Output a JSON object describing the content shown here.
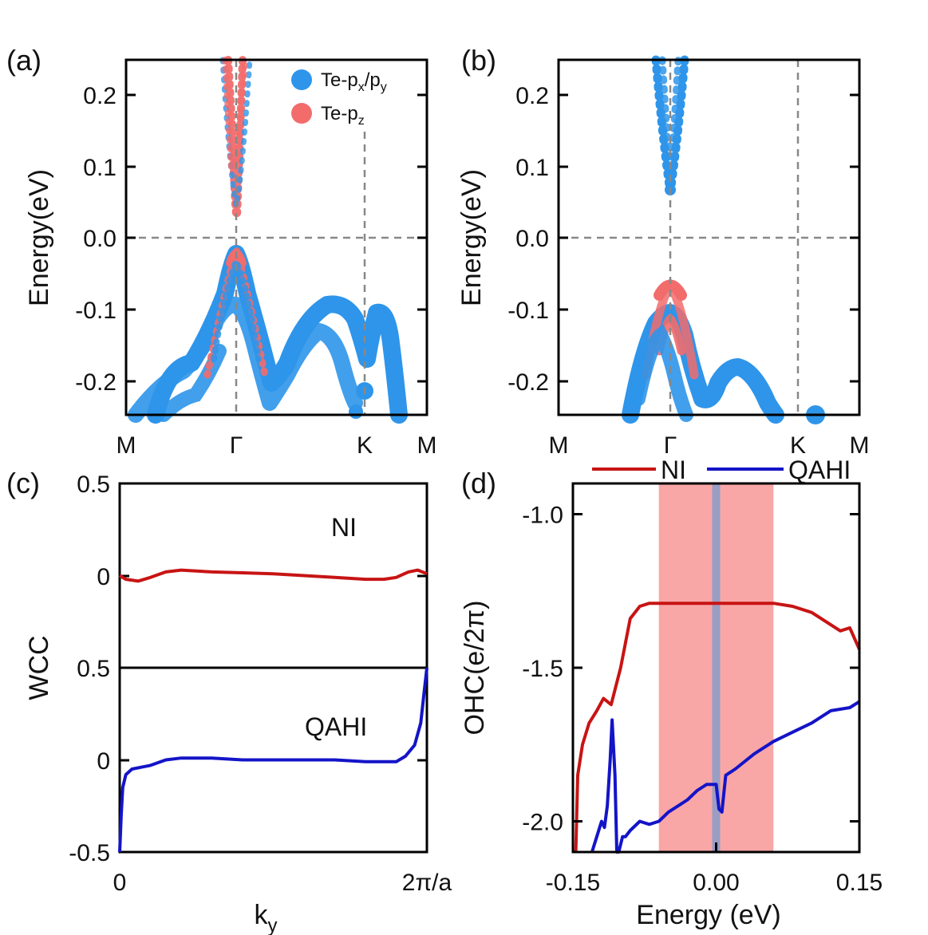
{
  "chart_data": [
    {
      "panel": "(a)",
      "type": "scatter",
      "ylabel": "Energy(eV)",
      "ylim": [
        -0.25,
        0.25
      ],
      "yticks": [
        "0.2",
        "0.1",
        "0.0",
        "-0.1",
        "-0.2"
      ],
      "xticks": [
        "M",
        "Γ",
        "K",
        "M"
      ],
      "legend": [
        {
          "base": "Te-p",
          "sub": "x",
          "mid": "/p",
          "sub2": "y",
          "color": "#2e95ea"
        },
        {
          "base": "Te-p",
          "sub": "z",
          "mid": "",
          "sub2": "",
          "color": "#f26c6c"
        }
      ],
      "series": [
        {
          "name": "Te-px/py",
          "color": "#2e95ea",
          "values": [
            [
              -0.2,
              -0.25
            ],
            [
              -0.16,
              -0.19
            ],
            [
              -0.12,
              -0.15
            ],
            [
              -0.08,
              -0.12
            ],
            [
              -0.05,
              -0.11
            ],
            [
              -0.02,
              -0.1
            ],
            [
              0.0,
              -0.09
            ],
            [
              0.03,
              -0.12
            ],
            [
              0.06,
              -0.18
            ],
            [
              0.1,
              -0.22
            ],
            [
              0.18,
              -0.17
            ],
            [
              0.3,
              -0.1
            ],
            [
              0.4,
              -0.09
            ],
            [
              0.48,
              -0.1
            ],
            [
              0.52,
              -0.12
            ],
            [
              0.58,
              -0.25
            ]
          ]
        },
        {
          "name": "Te-pz",
          "color": "#f26c6c",
          "values": [
            [
              -0.05,
              -0.13
            ],
            [
              -0.02,
              -0.05
            ],
            [
              0.0,
              -0.02
            ],
            [
              0.02,
              -0.05
            ],
            [
              0.05,
              -0.13
            ],
            [
              0.0,
              0.04
            ],
            [
              0.0,
              0.1
            ]
          ]
        }
      ]
    },
    {
      "panel": "(b)",
      "type": "scatter",
      "ylabel": "Energy(eV)",
      "ylim": [
        -0.25,
        0.25
      ],
      "yticks": [
        "0.2",
        "0.1",
        "0.0",
        "-0.1",
        "-0.2"
      ],
      "xticks": [
        "M",
        "Γ",
        "K",
        "M"
      ],
      "series": [
        {
          "name": "Te-px/py",
          "color": "#2e95ea",
          "values": [
            [
              -0.1,
              -0.25
            ],
            [
              -0.06,
              -0.16
            ],
            [
              -0.03,
              -0.12
            ],
            [
              0.0,
              -0.12
            ],
            [
              0.03,
              -0.16
            ],
            [
              0.08,
              -0.22
            ],
            [
              0.15,
              -0.2
            ],
            [
              0.22,
              -0.2
            ],
            [
              0.3,
              -0.24
            ],
            [
              0.0,
              0.07
            ],
            [
              0.0,
              0.2
            ]
          ]
        },
        {
          "name": "Te-pz",
          "color": "#f26c6c",
          "values": [
            [
              -0.03,
              -0.09
            ],
            [
              0.0,
              -0.065
            ],
            [
              0.03,
              -0.09
            ],
            [
              0.0,
              -0.13
            ]
          ]
        }
      ]
    },
    {
      "panel": "(c)",
      "type": "line",
      "ylabel": "WCC",
      "xlabel_base": "k",
      "xlabel_sub": "y",
      "xticks": [
        "0",
        "2π/a"
      ],
      "top": {
        "annotation": "NI",
        "yticks": [
          "0.5",
          "0"
        ],
        "ylim": [
          -0.5,
          0.5
        ],
        "color": "#c81414",
        "x": [
          0,
          0.02,
          0.06,
          0.1,
          0.15,
          0.2,
          0.3,
          0.4,
          0.5,
          0.6,
          0.7,
          0.8,
          0.86,
          0.9,
          0.94,
          0.97,
          1.0
        ],
        "y": [
          0.0,
          -0.02,
          -0.03,
          -0.01,
          0.02,
          0.03,
          0.02,
          0.015,
          0.01,
          0.0,
          -0.01,
          -0.02,
          -0.02,
          -0.01,
          0.02,
          0.03,
          0.01
        ]
      },
      "bottom": {
        "annotation": "QAHI",
        "yticks": [
          "0.5",
          "0",
          "-0.5"
        ],
        "ylim": [
          -0.5,
          0.5
        ],
        "color": "#1414c8",
        "x": [
          0,
          0.005,
          0.01,
          0.02,
          0.04,
          0.07,
          0.1,
          0.15,
          0.2,
          0.3,
          0.4,
          0.5,
          0.6,
          0.7,
          0.8,
          0.85,
          0.9,
          0.93,
          0.96,
          0.98,
          0.99,
          1.0
        ],
        "y": [
          -0.5,
          -0.3,
          -0.15,
          -0.08,
          -0.05,
          -0.04,
          -0.03,
          0.0,
          0.01,
          0.01,
          0.0,
          0.0,
          0.0,
          0.0,
          -0.01,
          -0.01,
          -0.01,
          0.02,
          0.08,
          0.2,
          0.35,
          0.5
        ]
      }
    },
    {
      "panel": "(d)",
      "type": "line",
      "ylabel": "OHC(e/2π)",
      "xlabel": "Energy (eV)",
      "xlim": [
        -0.15,
        0.15
      ],
      "ylim": [
        -2.1,
        -0.9
      ],
      "xticks": [
        {
          "v": -0.15,
          "label": "-0.15"
        },
        {
          "v": 0.0,
          "label": "0.00"
        },
        {
          "v": 0.15,
          "label": "0.15"
        }
      ],
      "yticks": [
        {
          "v": -1.0,
          "label": "-1.0"
        },
        {
          "v": -1.5,
          "label": "-1.5"
        },
        {
          "v": -2.0,
          "label": "-2.0"
        }
      ],
      "shaded_region": {
        "from": -0.06,
        "to": 0.06,
        "color": "#f9a6a6"
      },
      "fermi_line": {
        "at": 0.0,
        "color": "#8a9bc9"
      },
      "series": [
        {
          "name": "NI",
          "color": "#c81414",
          "x": [
            -0.147,
            -0.145,
            -0.14,
            -0.133,
            -0.125,
            -0.118,
            -0.11,
            -0.1,
            -0.09,
            -0.08,
            -0.07,
            0.0,
            0.06,
            0.08,
            0.1,
            0.12,
            0.13,
            0.14,
            0.15
          ],
          "y": [
            -2.1,
            -1.85,
            -1.75,
            -1.68,
            -1.64,
            -1.6,
            -1.62,
            -1.5,
            -1.34,
            -1.3,
            -1.29,
            -1.29,
            -1.29,
            -1.3,
            -1.32,
            -1.36,
            -1.38,
            -1.37,
            -1.44
          ]
        },
        {
          "name": "QAHI",
          "color": "#1414c8",
          "x": [
            -0.13,
            -0.12,
            -0.117,
            -0.114,
            -0.111,
            -0.109,
            -0.106,
            -0.104,
            -0.102,
            -0.098,
            -0.095,
            -0.09,
            -0.08,
            -0.07,
            -0.06,
            -0.05,
            -0.04,
            -0.03,
            -0.02,
            -0.01,
            0.0,
            0.003,
            0.006,
            0.01,
            0.02,
            0.04,
            0.06,
            0.08,
            0.1,
            0.12,
            0.14,
            0.15
          ],
          "y": [
            -2.1,
            -2.0,
            -2.02,
            -1.95,
            -1.8,
            -1.67,
            -1.85,
            -2.1,
            -2.1,
            -2.05,
            -2.05,
            -2.03,
            -2.0,
            -2.01,
            -2.0,
            -1.97,
            -1.95,
            -1.93,
            -1.9,
            -1.88,
            -1.88,
            -1.96,
            -1.97,
            -1.85,
            -1.83,
            -1.78,
            -1.74,
            -1.71,
            -1.68,
            -1.64,
            -1.63,
            -1.61
          ]
        }
      ],
      "legend": [
        "NI",
        "QAHI"
      ]
    }
  ]
}
